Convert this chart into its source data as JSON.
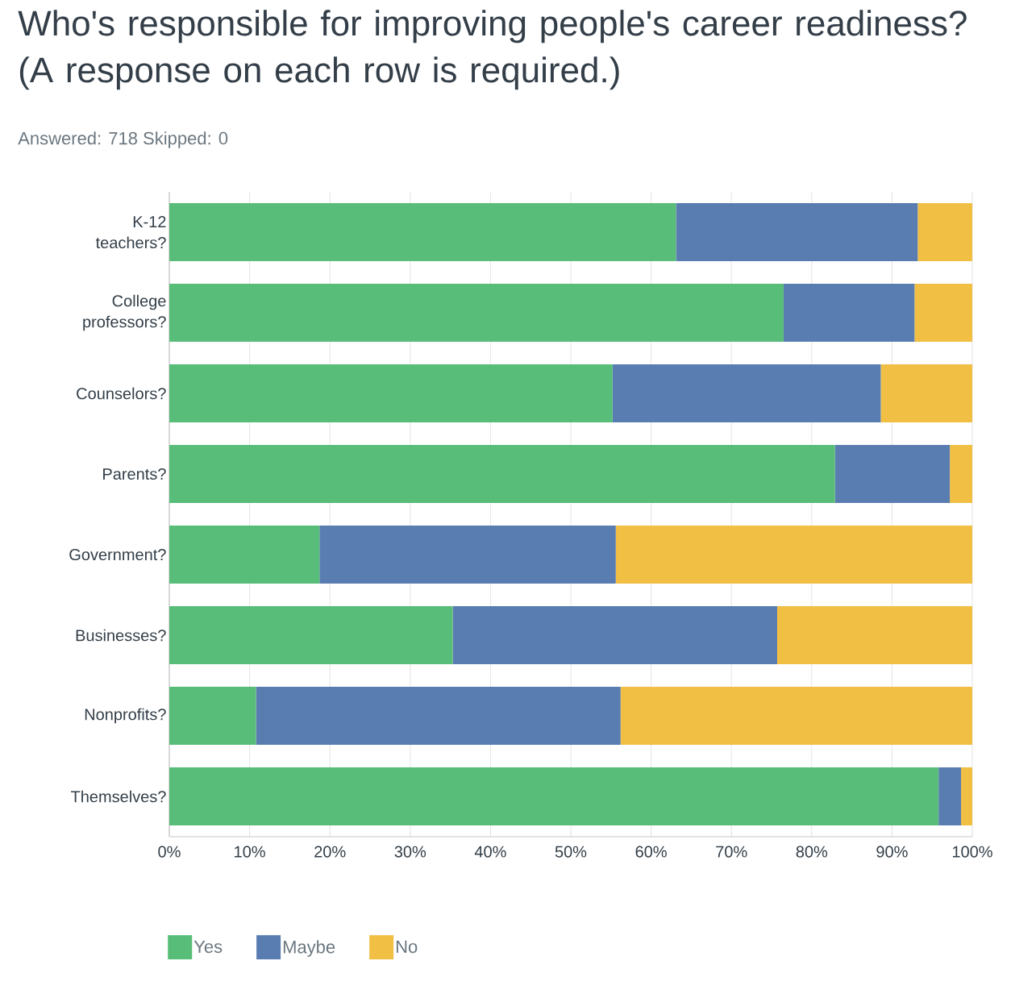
{
  "chart_data": {
    "type": "bar",
    "orientation": "horizontal",
    "stacked": true,
    "title": "Who's responsible for improving people's career readiness? (A response on each row is required.)",
    "subtitle": "Answered: 718      Skipped: 0",
    "categories": [
      "K-12 teachers?",
      "College professors?",
      "Counselors?",
      "Parents?",
      "Government?",
      "Businesses?",
      "Nonprofits?",
      "Themselves?"
    ],
    "series": [
      {
        "name": "Yes",
        "color": "#57bd78",
        "values": [
          63.1,
          76.5,
          55.2,
          82.9,
          18.7,
          35.3,
          10.8,
          95.8
        ]
      },
      {
        "name": "Maybe",
        "color": "#5a7db1",
        "values": [
          30.1,
          16.3,
          33.4,
          14.3,
          36.9,
          40.4,
          45.4,
          2.8
        ]
      },
      {
        "name": "No",
        "color": "#f0bf44",
        "values": [
          6.8,
          7.2,
          11.4,
          2.8,
          44.4,
          24.3,
          43.8,
          1.4
        ]
      }
    ],
    "xlim": [
      0,
      100
    ],
    "xticks": [
      {
        "value": 0,
        "label": "0%"
      },
      {
        "value": 10,
        "label": "10%"
      },
      {
        "value": 20,
        "label": "20%"
      },
      {
        "value": 30,
        "label": "30%"
      },
      {
        "value": 40,
        "label": "40%"
      },
      {
        "value": 50,
        "label": "50%"
      },
      {
        "value": 60,
        "label": "60%"
      },
      {
        "value": 70,
        "label": "70%"
      },
      {
        "value": 80,
        "label": "80%"
      },
      {
        "value": 90,
        "label": "90%"
      },
      {
        "value": 100,
        "label": "100%"
      }
    ],
    "grid": "x",
    "legend": "bottom"
  }
}
